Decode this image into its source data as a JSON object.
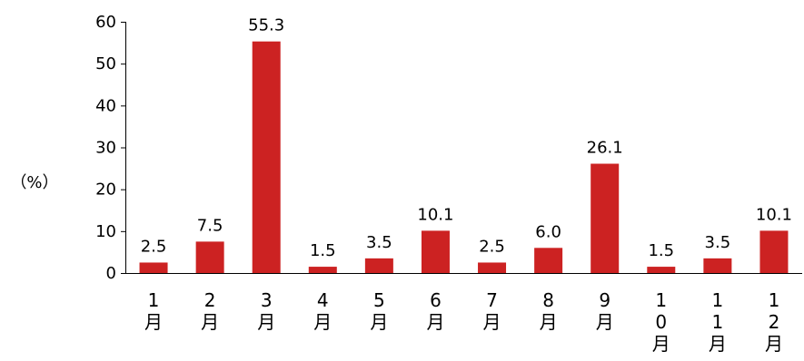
{
  "chart_data": {
    "type": "bar",
    "categories": [
      "1月",
      "2月",
      "3月",
      "4月",
      "5月",
      "6月",
      "7月",
      "8月",
      "9月",
      "10月",
      "11月",
      "12月"
    ],
    "values": [
      2.5,
      7.5,
      55.3,
      1.5,
      3.5,
      10.1,
      2.5,
      6.0,
      26.1,
      1.5,
      3.5,
      10.1
    ],
    "data_labels": [
      "2.5",
      "7.5",
      "55.3",
      "1.5",
      "3.5",
      "10.1",
      "2.5",
      "6.0",
      "26.1",
      "1.5",
      "3.5",
      "10.1"
    ],
    "yticks": [
      "0",
      "10",
      "20",
      "30",
      "40",
      "50",
      "60"
    ],
    "ylabel": "（%）",
    "xlabel": "",
    "title": "",
    "ylim": [
      0,
      60
    ],
    "grid": false,
    "bar_color": "#CC2222"
  }
}
